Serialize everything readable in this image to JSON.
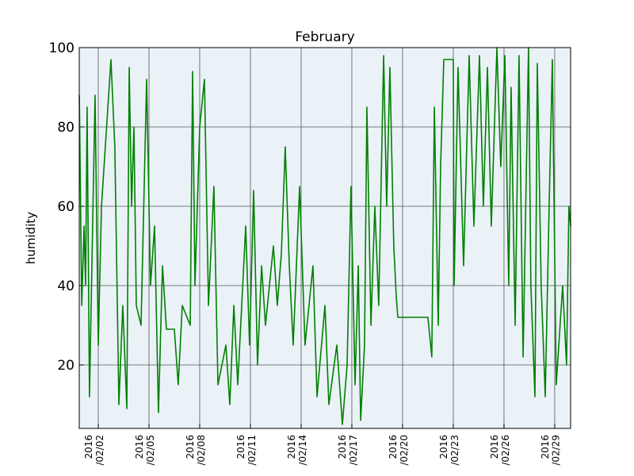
{
  "chart_data": {
    "type": "line",
    "title": "February",
    "y_label": "humidity",
    "x": [
      0.88,
      1.02,
      1.16,
      1.25,
      1.34,
      1.48,
      1.81,
      2.0,
      2.19,
      2.75,
      2.98,
      3.22,
      3.45,
      3.69,
      3.83,
      3.97,
      4.11,
      4.25,
      4.53,
      4.86,
      5.09,
      5.33,
      5.56,
      5.8,
      6.03,
      6.5,
      6.73,
      6.97,
      7.44,
      7.58,
      7.72,
      8.0,
      8.28,
      8.52,
      8.84,
      9.08,
      9.55,
      9.78,
      10.02,
      10.25,
      10.72,
      10.95,
      11.19,
      11.42,
      11.66,
      11.89,
      12.36,
      12.59,
      12.83,
      13.06,
      13.3,
      13.53,
      13.91,
      14.23,
      14.7,
      14.94,
      15.41,
      15.64,
      16.11,
      16.44,
      16.72,
      16.95,
      17.19,
      17.38,
      17.52,
      17.75,
      17.89,
      18.13,
      18.36,
      18.59,
      18.88,
      19.06,
      19.25,
      19.48,
      19.63,
      19.72,
      21.5,
      21.73,
      21.88,
      22.11,
      22.25,
      22.44,
      23.0,
      23.05,
      23.28,
      23.61,
      23.94,
      24.22,
      24.55,
      24.78,
      25.02,
      25.25,
      25.58,
      25.81,
      26.05,
      26.28,
      26.42,
      26.66,
      26.89,
      27.13,
      27.45,
      27.59,
      27.83,
      27.97,
      28.2,
      28.44,
      28.67,
      28.86,
      29.09,
      29.47,
      29.7,
      29.84,
      29.94
    ],
    "series": [
      {
        "color": "#008000",
        "values": [
          88,
          35,
          55,
          40,
          85,
          12,
          88,
          25,
          60,
          97,
          75,
          10,
          35,
          9,
          95,
          60,
          80,
          35,
          30,
          92,
          40,
          55,
          8,
          45,
          29,
          29,
          15,
          35,
          30,
          94,
          40,
          80,
          92,
          35,
          65,
          15,
          25,
          10,
          35,
          15,
          55,
          25,
          64,
          20,
          45,
          30,
          50,
          35,
          48,
          75,
          45,
          25,
          65,
          25,
          45,
          12,
          35,
          10,
          25,
          5,
          20,
          65,
          15,
          45,
          6,
          25,
          85,
          30,
          60,
          35,
          98,
          60,
          95,
          50,
          37,
          32,
          32,
          22,
          85,
          30,
          70,
          97,
          97,
          40,
          95,
          45,
          98,
          55,
          98,
          60,
          95,
          55,
          100,
          70,
          98,
          40,
          90,
          30,
          98,
          22,
          100,
          40,
          12,
          96,
          40,
          12,
          60,
          97,
          15,
          40,
          20,
          60,
          55
        ]
      }
    ],
    "xlim": [
      0.875,
      29.94
    ],
    "xticks": [
      {
        "value": 2,
        "label": "2016\n/02/02"
      },
      {
        "value": 5,
        "label": "2016\n/02/05"
      },
      {
        "value": 8,
        "label": "2016\n/02/08"
      },
      {
        "value": 11,
        "label": "2016\n/02/11"
      },
      {
        "value": 14,
        "label": "2016\n/02/14"
      },
      {
        "value": 17,
        "label": "2016\n/02/17"
      },
      {
        "value": 20,
        "label": "2016\n/02/20"
      },
      {
        "value": 23,
        "label": "2016\n/02/23"
      },
      {
        "value": 26,
        "label": "2016\n/02/26"
      },
      {
        "value": 29,
        "label": "2016\n/02/29"
      }
    ],
    "ylim": [
      4,
      100
    ],
    "yticks": [
      20,
      40,
      60,
      80,
      100
    ],
    "grid": true
  }
}
